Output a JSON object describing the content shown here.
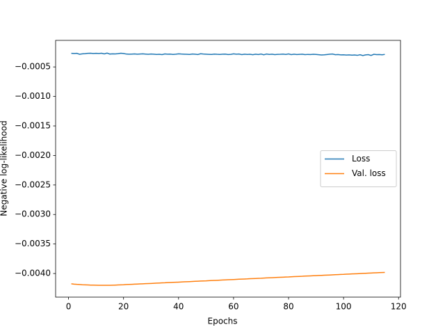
{
  "chart_data": {
    "type": "line",
    "xlabel": "Epochs",
    "ylabel": "Negative log-likelihood",
    "x": [
      1,
      2,
      3,
      4,
      5,
      6,
      7,
      8,
      9,
      10,
      11,
      12,
      13,
      14,
      15,
      16,
      17,
      18,
      19,
      20,
      21,
      22,
      23,
      24,
      25,
      26,
      27,
      28,
      29,
      30,
      31,
      32,
      33,
      34,
      35,
      36,
      37,
      38,
      39,
      40,
      41,
      42,
      43,
      44,
      45,
      46,
      47,
      48,
      49,
      50,
      51,
      52,
      53,
      54,
      55,
      56,
      57,
      58,
      59,
      60,
      61,
      62,
      63,
      64,
      65,
      66,
      67,
      68,
      69,
      70,
      71,
      72,
      73,
      74,
      75,
      76,
      77,
      78,
      79,
      80,
      81,
      82,
      83,
      84,
      85,
      86,
      87,
      88,
      89,
      90,
      91,
      92,
      93,
      94,
      95,
      96,
      97,
      98,
      99,
      100,
      101,
      102,
      103,
      104,
      105,
      106,
      107,
      108,
      109,
      110,
      111,
      112,
      113,
      114,
      115
    ],
    "series": [
      {
        "name": "Loss",
        "color": "#1f77b4",
        "values": [
          -0.00027,
          -0.000272,
          -0.00027,
          -0.000285,
          -0.000278,
          -0.000275,
          -0.00027,
          -0.000268,
          -0.000272,
          -0.000269,
          -0.000272,
          -0.000268,
          -0.00028,
          -0.000266,
          -0.000282,
          -0.000278,
          -0.00028,
          -0.000275,
          -0.000268,
          -0.000272,
          -0.000282,
          -0.000285,
          -0.000283,
          -0.00028,
          -0.000285,
          -0.000282,
          -0.000279,
          -0.000283,
          -0.000286,
          -0.000281,
          -0.000284,
          -0.000288,
          -0.000286,
          -0.000291,
          -0.00028,
          -0.000285,
          -0.000283,
          -0.000289,
          -0.000284,
          -0.000278,
          -0.000282,
          -0.000284,
          -0.000286,
          -0.000288,
          -0.000282,
          -0.000285,
          -0.00029,
          -0.000277,
          -0.000281,
          -0.000284,
          -0.000287,
          -0.000289,
          -0.000283,
          -0.000286,
          -0.000288,
          -0.000285,
          -0.000283,
          -0.00029,
          -0.000287,
          -0.000279,
          -0.000284,
          -0.000282,
          -0.000291,
          -0.000285,
          -0.000288,
          -0.000286,
          -0.000293,
          -0.000284,
          -0.00029,
          -0.000282,
          -0.000294,
          -0.000281,
          -0.000289,
          -0.000285,
          -0.000292,
          -0.000287,
          -0.000286,
          -0.000283,
          -0.000289,
          -0.00028,
          -0.000291,
          -0.000285,
          -0.00029,
          -0.000287,
          -0.000284,
          -0.000292,
          -0.000288,
          -0.00029,
          -0.000286,
          -0.000289,
          -0.000293,
          -0.000297,
          -0.000295,
          -0.00029,
          -0.000285,
          -0.000281,
          -0.000293,
          -0.00029,
          -0.000296,
          -0.000294,
          -0.000299,
          -0.000296,
          -0.0003,
          -0.000298,
          -0.000304,
          -0.000293,
          -0.000308,
          -0.000296,
          -0.000292,
          -0.000306,
          -0.000286,
          -0.000292,
          -0.00029,
          -0.000295,
          -0.000288
        ]
      },
      {
        "name": "Val. loss",
        "color": "#ff7f0e",
        "values": [
          -0.004175,
          -0.00418,
          -0.004184,
          -0.004187,
          -0.00419,
          -0.004192,
          -0.004194,
          -0.004196,
          -0.004197,
          -0.004198,
          -0.004199,
          -0.0042,
          -0.0042,
          -0.0042,
          -0.0042,
          -0.004198,
          -0.004196,
          -0.004194,
          -0.004192,
          -0.00419,
          -0.004187,
          -0.004185,
          -0.004183,
          -0.004181,
          -0.004179,
          -0.004176,
          -0.004174,
          -0.004172,
          -0.00417,
          -0.004168,
          -0.004165,
          -0.004163,
          -0.004161,
          -0.004159,
          -0.004157,
          -0.004154,
          -0.004152,
          -0.00415,
          -0.004148,
          -0.004146,
          -0.004143,
          -0.004141,
          -0.004139,
          -0.004137,
          -0.004135,
          -0.004132,
          -0.00413,
          -0.004128,
          -0.004126,
          -0.004124,
          -0.004121,
          -0.004119,
          -0.004117,
          -0.004115,
          -0.004113,
          -0.00411,
          -0.004108,
          -0.004106,
          -0.004104,
          -0.004102,
          -0.004099,
          -0.004097,
          -0.004095,
          -0.004093,
          -0.004091,
          -0.004088,
          -0.004086,
          -0.004084,
          -0.004082,
          -0.00408,
          -0.004077,
          -0.004075,
          -0.004073,
          -0.004071,
          -0.004069,
          -0.004066,
          -0.004064,
          -0.004062,
          -0.00406,
          -0.004058,
          -0.004055,
          -0.004053,
          -0.004051,
          -0.004049,
          -0.004047,
          -0.004044,
          -0.004042,
          -0.00404,
          -0.004038,
          -0.004036,
          -0.004033,
          -0.004031,
          -0.004029,
          -0.004027,
          -0.004025,
          -0.004022,
          -0.00402,
          -0.004018,
          -0.004016,
          -0.004014,
          -0.004011,
          -0.004009,
          -0.004007,
          -0.004005,
          -0.004003,
          -0.004,
          -0.003998,
          -0.003996,
          -0.003994,
          -0.003992,
          -0.003989,
          -0.003987,
          -0.003985,
          -0.003983,
          -0.003981
        ]
      }
    ],
    "xlim": [
      -4.7,
      120.7
    ],
    "xticks": [
      0,
      20,
      40,
      60,
      80,
      100,
      120
    ],
    "ylim": [
      -0.0044,
      -5e-05
    ],
    "yticks": [
      {
        "value": -0.0005,
        "label": "−0.0005"
      },
      {
        "value": -0.001,
        "label": "−0.0010"
      },
      {
        "value": -0.0015,
        "label": "−0.0015"
      },
      {
        "value": -0.002,
        "label": "−0.0020"
      },
      {
        "value": -0.0025,
        "label": "−0.0025"
      },
      {
        "value": -0.003,
        "label": "−0.0030"
      },
      {
        "value": -0.0035,
        "label": "−0.0035"
      },
      {
        "value": -0.004,
        "label": "−0.0040"
      }
    ],
    "legend": "center right"
  }
}
